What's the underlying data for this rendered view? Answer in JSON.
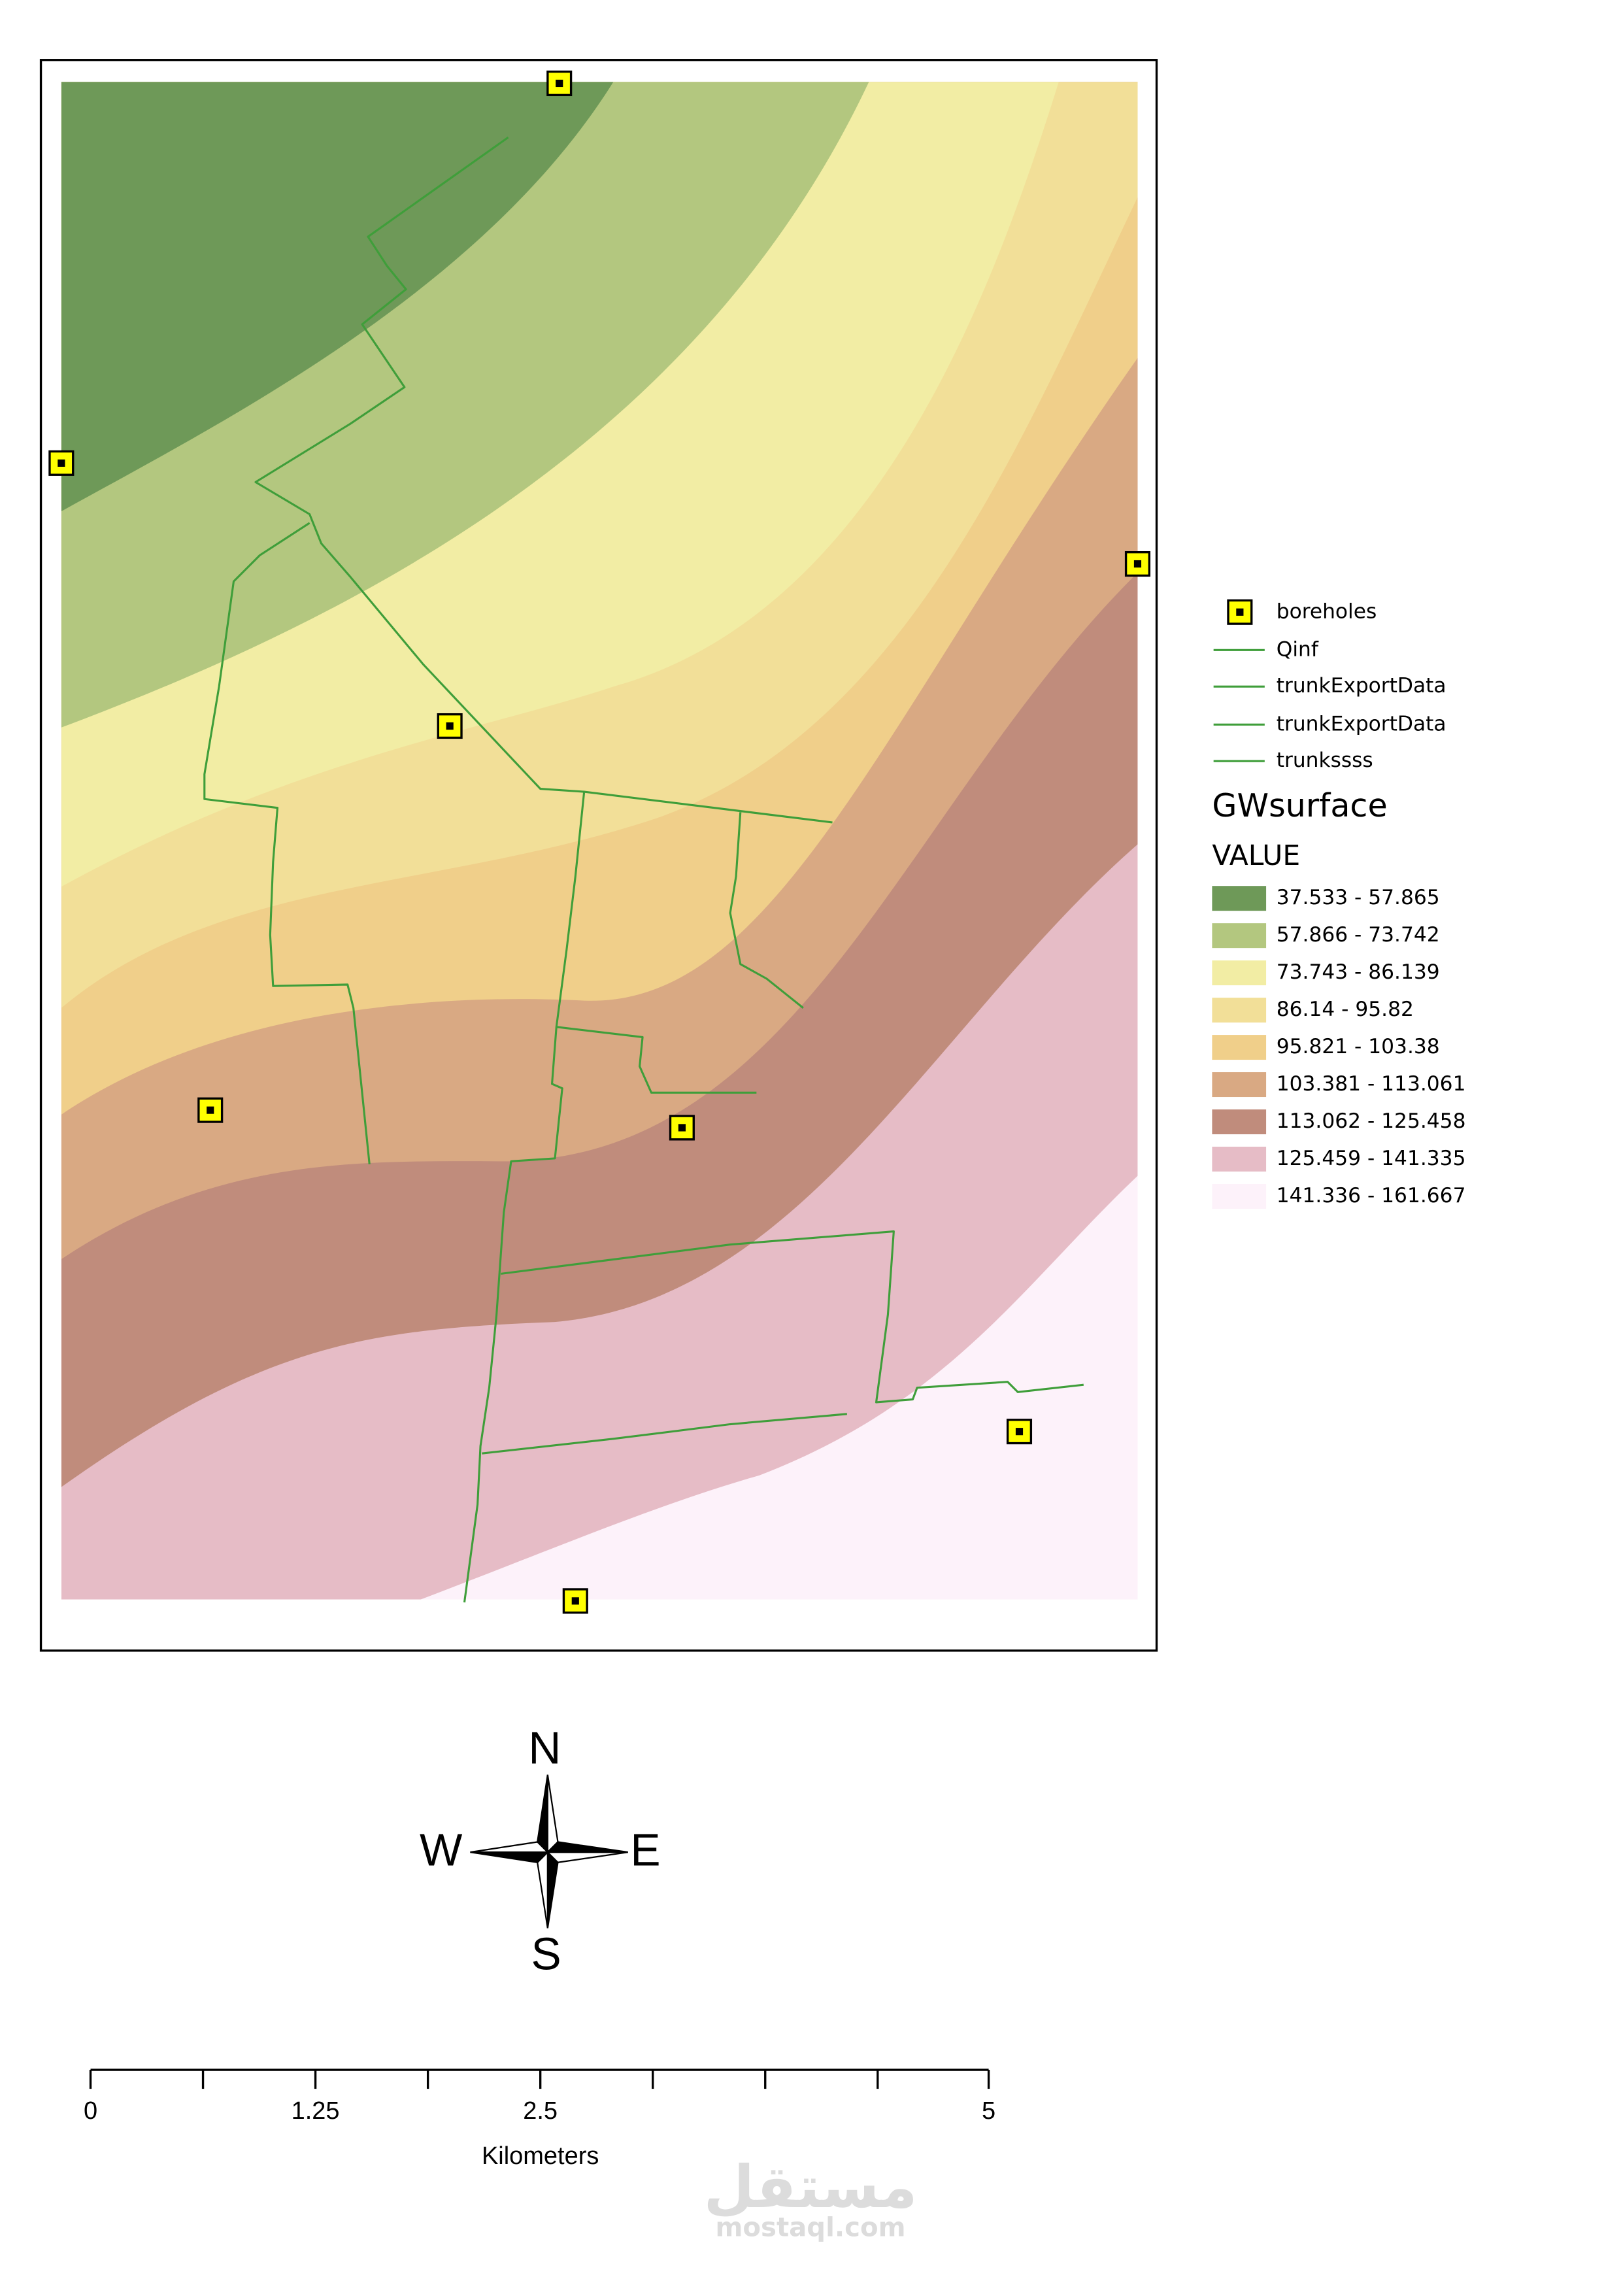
{
  "map": {
    "legend": {
      "layers": [
        "boreholes",
        "Qinf",
        "trunkExportData",
        "trunkExportData",
        "trunkssss"
      ],
      "raster_title": "GWsurface",
      "field": "VALUE",
      "classes": [
        {
          "label": "37.533 - 57.865",
          "color": "#6e9958"
        },
        {
          "label": "57.866 - 73.742",
          "color": "#b3c77f"
        },
        {
          "label": "73.743 - 86.139",
          "color": "#f2eda4"
        },
        {
          "label": "86.14 - 95.82",
          "color": "#f2df98"
        },
        {
          "label": "95.821 - 103.38",
          "color": "#f0cf8a"
        },
        {
          "label": "103.381 - 113.061",
          "color": "#d9a983"
        },
        {
          "label": "113.062 - 125.458",
          "color": "#c08c7c"
        },
        {
          "label": "125.459 - 141.335",
          "color": "#e6bcc6"
        },
        {
          "label": "141.336 - 161.667",
          "color": "#fdf2fa"
        }
      ]
    },
    "compass": {
      "north": "N",
      "west": "W",
      "east": "E",
      "south": "S"
    },
    "scale_bar": {
      "labels": [
        "0",
        "1.25",
        "2.5",
        "5"
      ],
      "unit": "Kilometers"
    },
    "watermark": {
      "arabic": "مستقل",
      "latin": "mostaql.com"
    }
  }
}
